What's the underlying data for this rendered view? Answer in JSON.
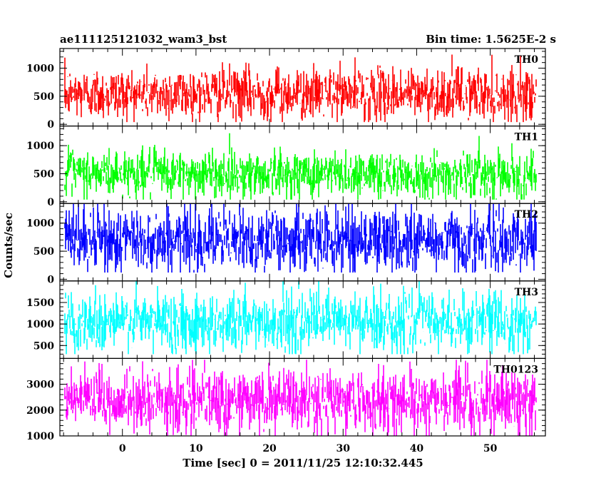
{
  "chart_data": {
    "type": "line",
    "title_left": "ae111125121032_wam3_bst",
    "title_right": "Bin time: 1.5625E-2 s",
    "xlabel": "Time [sec] 0 = 2011/11/25 12:10:32.445",
    "ylabel": "Counts/sec",
    "xlim": [
      -8.5,
      57.5
    ],
    "x_data_range": [
      -7.8,
      56.2
    ],
    "xticks": [
      0,
      10,
      20,
      30,
      40,
      50
    ],
    "xtick_labels": [
      "0",
      "10",
      "20",
      "30",
      "40",
      "50"
    ],
    "bin_time_s": 0.015625,
    "grid": false,
    "series": [
      {
        "name": "TH0",
        "color": "#ff0000",
        "ylim": [
          -30,
          1350
        ],
        "yticks": [
          0,
          500,
          1000
        ],
        "ytick_labels": [
          "0",
          "500",
          "1000"
        ],
        "mean": 550,
        "low": 40,
        "high": 1300,
        "spread": 230
      },
      {
        "name": "TH1",
        "color": "#00ff00",
        "ylim": [
          -30,
          1350
        ],
        "yticks": [
          0,
          500,
          1000
        ],
        "ytick_labels": [
          "0",
          "500",
          "1000"
        ],
        "mean": 500,
        "low": 40,
        "high": 1250,
        "spread": 210
      },
      {
        "name": "TH2",
        "color": "#0000ff",
        "ylim": [
          -30,
          1350
        ],
        "yticks": [
          0,
          500,
          1000
        ],
        "ytick_labels": [
          "0",
          "500",
          "1000"
        ],
        "mean": 700,
        "low": 120,
        "high": 1350,
        "spread": 290
      },
      {
        "name": "TH3",
        "color": "#00ffff",
        "ylim": [
          200,
          2000
        ],
        "yticks": [
          500,
          1000,
          1500
        ],
        "ytick_labels": [
          "500",
          "1000",
          "1500"
        ],
        "mean": 1050,
        "low": 300,
        "high": 2000,
        "spread": 350
      },
      {
        "name": "TH0123",
        "color": "#ff00ff",
        "ylim": [
          1000,
          4000
        ],
        "yticks": [
          1000,
          2000,
          3000
        ],
        "ytick_labels": [
          "1000",
          "2000",
          "3000"
        ],
        "mean": 2350,
        "low": 1000,
        "high": 3950,
        "spread": 600
      }
    ]
  }
}
